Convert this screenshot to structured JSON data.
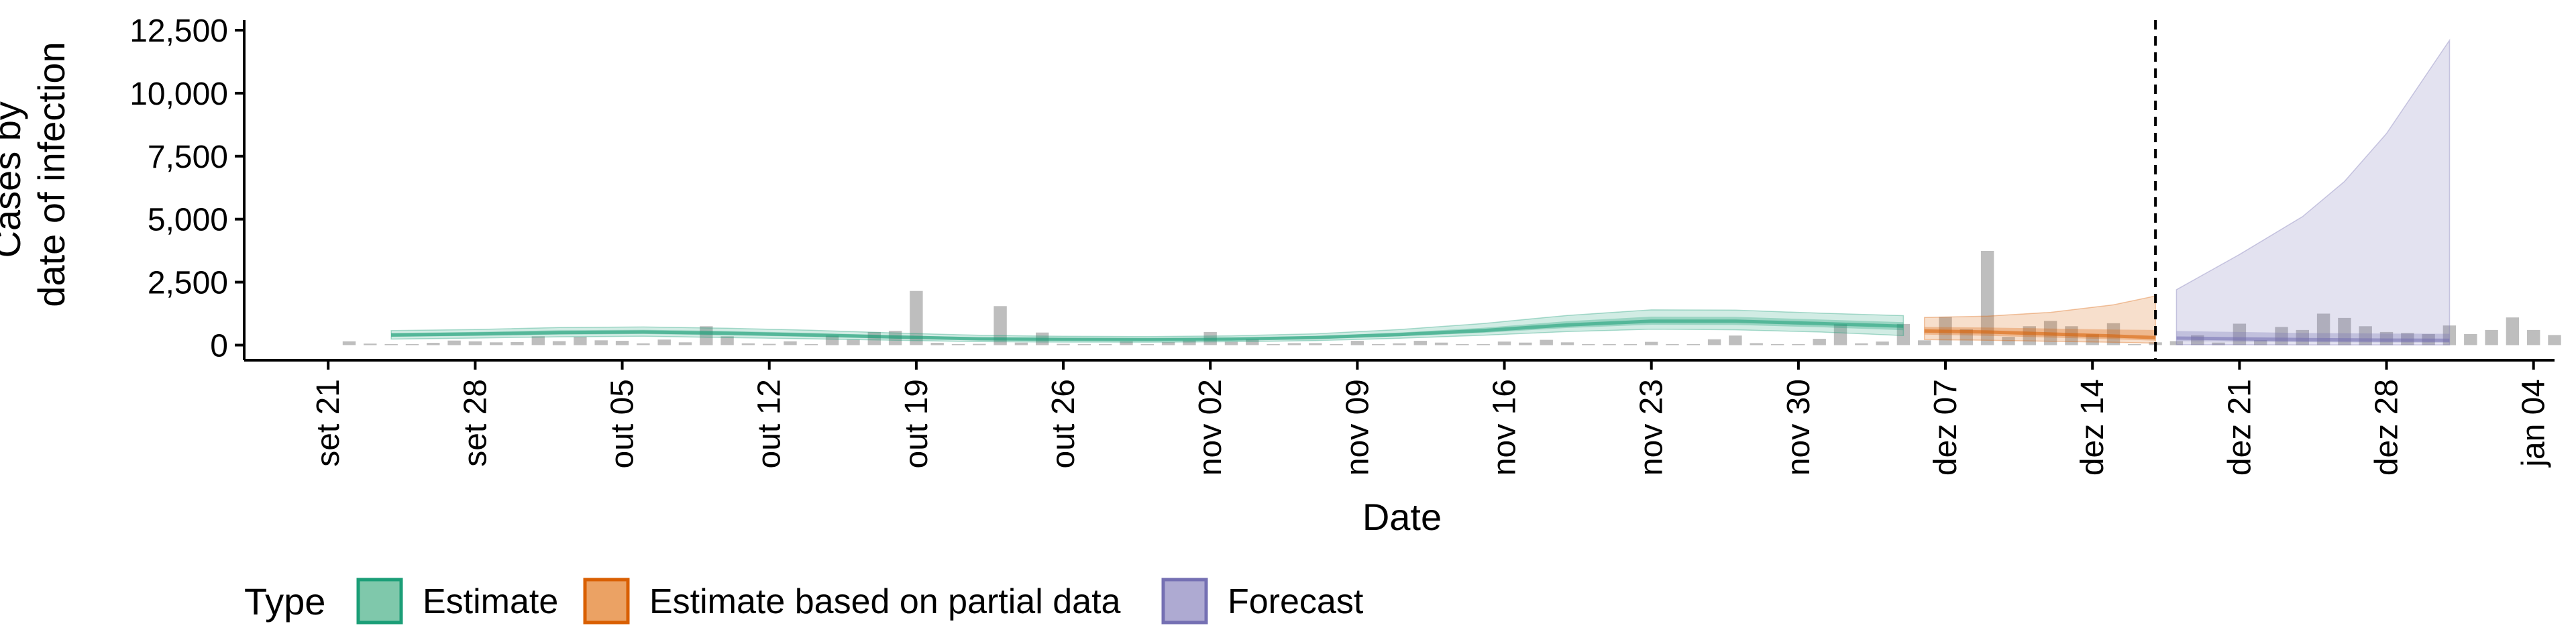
{
  "chart_data": {
    "type": "area",
    "xlabel": "Date",
    "ylabel_lines": [
      "Cases by",
      "date of infection"
    ],
    "x_range": [
      "2020-09-17",
      "2021-01-05"
    ],
    "ylim": [
      -600,
      12900
    ],
    "y_ticks": [
      0,
      2500,
      5000,
      7500,
      10000,
      12500
    ],
    "y_tick_labels": [
      "0",
      "2,500",
      "5,000",
      "7,500",
      "10,000",
      "12,500"
    ],
    "x_ticks": [
      "2020-09-21",
      "2020-09-28",
      "2020-10-05",
      "2020-10-12",
      "2020-10-19",
      "2020-10-26",
      "2020-11-02",
      "2020-11-09",
      "2020-11-16",
      "2020-11-23",
      "2020-11-30",
      "2020-12-07",
      "2020-12-14",
      "2020-12-21",
      "2020-12-28",
      "2021-01-04"
    ],
    "x_tick_labels": [
      "set 21",
      "set 28",
      "out 05",
      "out 12",
      "out 19",
      "out 26",
      "nov 02",
      "nov 09",
      "nov 16",
      "nov 23",
      "nov 30",
      "dez 07",
      "dez 14",
      "dez 21",
      "dez 28",
      "jan 04"
    ],
    "forecast_line_date": "2020-12-17",
    "legend": {
      "title": "Type",
      "position": "bottom",
      "items": [
        {
          "label": "Estimate",
          "fill": "#7fc8ab",
          "stroke": "#1b9e77"
        },
        {
          "label": "Estimate based on partial data",
          "fill": "#eba264",
          "stroke": "#d95f02"
        },
        {
          "label": "Forecast",
          "fill": "#aeaad2",
          "stroke": "#7570b3"
        }
      ]
    },
    "colors": {
      "bar": "#b3b3b3",
      "estimate": "#1b9e77",
      "partial": "#d95f02",
      "forecast": "#7570b3",
      "vline": "#000000"
    },
    "bars": {
      "start_date": "2020-09-22",
      "values": [
        150,
        60,
        30,
        20,
        90,
        180,
        150,
        110,
        120,
        350,
        160,
        330,
        190,
        170,
        70,
        220,
        110,
        750,
        350,
        70,
        50,
        150,
        10,
        380,
        220,
        520,
        570,
        2150,
        90,
        30,
        50,
        1550,
        100,
        500,
        50,
        40,
        20,
        150,
        40,
        120,
        180,
        520,
        140,
        230,
        40,
        80,
        80,
        30,
        170,
        20,
        70,
        170,
        100,
        40,
        30,
        140,
        100,
        210,
        110,
        20,
        10,
        20,
        130,
        40,
        20,
        230,
        380,
        80,
        20,
        40,
        250,
        830,
        70,
        140,
        840,
        190,
        1120,
        630,
        3740,
        330,
        750,
        960,
        750,
        430,
        870,
        40,
        110,
        160,
        390,
        100,
        850,
        200,
        720,
        600,
        1250,
        1080,
        750,
        520,
        480,
        440,
        780,
        440,
        600,
        1100,
        600,
        400
      ]
    },
    "series": [
      {
        "name": "Estimate",
        "dates": [
          "2020-09-24",
          "2020-09-28",
          "2020-10-02",
          "2020-10-06",
          "2020-10-10",
          "2020-10-14",
          "2020-10-18",
          "2020-10-22",
          "2020-10-26",
          "2020-10-30",
          "2020-11-03",
          "2020-11-07",
          "2020-11-11",
          "2020-11-15",
          "2020-11-19",
          "2020-11-23",
          "2020-11-27",
          "2020-12-01",
          "2020-12-05"
        ],
        "median": [
          400,
          440,
          500,
          520,
          470,
          400,
          320,
          250,
          230,
          220,
          240,
          300,
          420,
          580,
          800,
          950,
          950,
          860,
          750
        ],
        "lower_50": [
          330,
          370,
          420,
          440,
          390,
          330,
          260,
          200,
          180,
          175,
          195,
          250,
          350,
          490,
          680,
          810,
          800,
          710,
          590
        ],
        "upper_50": [
          480,
          520,
          590,
          610,
          560,
          480,
          390,
          310,
          280,
          270,
          295,
          360,
          500,
          690,
          950,
          1130,
          1120,
          1020,
          910
        ],
        "lower_90": [
          240,
          280,
          330,
          350,
          300,
          250,
          190,
          140,
          120,
          115,
          135,
          180,
          270,
          390,
          540,
          630,
          610,
          520,
          380
        ],
        "upper_90": [
          580,
          620,
          700,
          720,
          670,
          590,
          480,
          390,
          350,
          340,
          370,
          450,
          620,
          860,
          1180,
          1400,
          1390,
          1270,
          1170
        ]
      },
      {
        "name": "Estimate based on partial data",
        "dates": [
          "2020-12-06",
          "2020-12-09",
          "2020-12-12",
          "2020-12-15",
          "2020-12-17"
        ],
        "median": [
          560,
          520,
          440,
          360,
          300
        ],
        "lower_50": [
          420,
          370,
          300,
          230,
          180
        ],
        "upper_50": [
          720,
          700,
          660,
          620,
          600
        ],
        "lower_90": [
          220,
          190,
          150,
          110,
          80
        ],
        "upper_90": [
          1100,
          1150,
          1300,
          1600,
          1950
        ]
      },
      {
        "name": "Forecast",
        "dates": [
          "2020-12-18",
          "2020-12-21",
          "2020-12-24",
          "2020-12-26",
          "2020-12-28",
          "2020-12-31"
        ],
        "median": [
          280,
          250,
          220,
          210,
          200,
          190
        ],
        "lower_50": [
          160,
          140,
          120,
          110,
          105,
          100
        ],
        "upper_50": [
          560,
          520,
          480,
          470,
          460,
          450
        ],
        "lower_90": [
          20,
          15,
          10,
          10,
          10,
          10
        ],
        "upper_90": [
          2200,
          3600,
          5100,
          6500,
          8400,
          12100
        ]
      }
    ]
  }
}
